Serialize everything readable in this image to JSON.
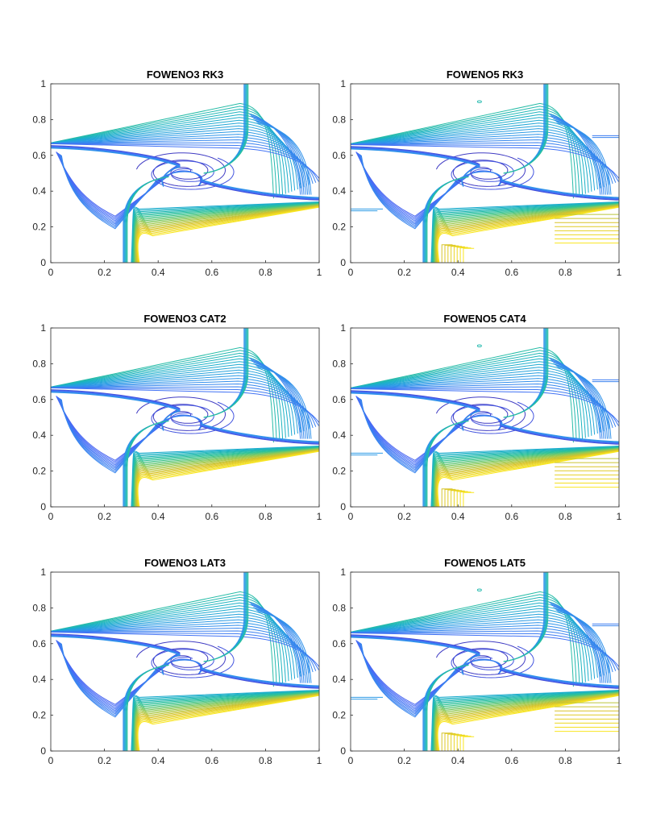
{
  "figure": {
    "description_type": "contour-grid",
    "colormap": [
      "#3e26a8",
      "#4669f7",
      "#2d97e9",
      "#1ab1c7",
      "#2ec295",
      "#8ec957",
      "#d9c328",
      "#f9e61f"
    ]
  },
  "chart_data": [
    {
      "type": "contour",
      "title": "FOWENO3 RK3",
      "xlim": [
        0,
        1
      ],
      "ylim": [
        0,
        1
      ],
      "xticks": [
        0,
        0.2,
        0.4,
        0.6,
        0.8,
        1
      ],
      "yticks": [
        0,
        0.2,
        0.4,
        0.6,
        0.8,
        1
      ],
      "xtick_labels": [
        "0",
        "0.2",
        "0.4",
        "0.6",
        "0.8",
        "1"
      ],
      "ytick_labels": [
        "0",
        "0.2",
        "0.4",
        "0.6",
        "0.8",
        "1"
      ],
      "scheme": "weno3",
      "vortex_center": [
        0.5,
        0.5
      ],
      "shear_left_y": 0.655,
      "shear_right_y": 0.35,
      "shear_top_x": 0.72,
      "shear_bottom_x": 0.27
    },
    {
      "type": "contour",
      "title": "FOWENO5 RK3",
      "xlim": [
        0,
        1
      ],
      "ylim": [
        0,
        1
      ],
      "xticks": [
        0,
        0.2,
        0.4,
        0.6,
        0.8,
        1
      ],
      "yticks": [
        0,
        0.2,
        0.4,
        0.6,
        0.8,
        1
      ],
      "xtick_labels": [
        "0",
        "0.2",
        "0.4",
        "0.6",
        "0.8",
        "1"
      ],
      "ytick_labels": [
        "0",
        "0.2",
        "0.4",
        "0.6",
        "0.8",
        "1"
      ],
      "scheme": "weno5",
      "vortex_center": [
        0.5,
        0.5
      ],
      "shear_left_y": 0.65,
      "shear_right_y": 0.35,
      "shear_top_x": 0.72,
      "shear_bottom_x": 0.27
    },
    {
      "type": "contour",
      "title": "FOWENO3 CAT2",
      "xlim": [
        0,
        1
      ],
      "ylim": [
        0,
        1
      ],
      "xticks": [
        0,
        0.2,
        0.4,
        0.6,
        0.8,
        1
      ],
      "yticks": [
        0,
        0.2,
        0.4,
        0.6,
        0.8,
        1
      ],
      "xtick_labels": [
        "0",
        "0.2",
        "0.4",
        "0.6",
        "0.8",
        "1"
      ],
      "ytick_labels": [
        "0",
        "0.2",
        "0.4",
        "0.6",
        "0.8",
        "1"
      ],
      "scheme": "weno3",
      "vortex_center": [
        0.5,
        0.5
      ],
      "shear_left_y": 0.655,
      "shear_right_y": 0.35,
      "shear_top_x": 0.72,
      "shear_bottom_x": 0.27
    },
    {
      "type": "contour",
      "title": "FOWENO5 CAT4",
      "xlim": [
        0,
        1
      ],
      "ylim": [
        0,
        1
      ],
      "xticks": [
        0,
        0.2,
        0.4,
        0.6,
        0.8,
        1
      ],
      "yticks": [
        0,
        0.2,
        0.4,
        0.6,
        0.8,
        1
      ],
      "xtick_labels": [
        "0",
        "0.2",
        "0.4",
        "0.6",
        "0.8",
        "1"
      ],
      "ytick_labels": [
        "0",
        "0.2",
        "0.4",
        "0.6",
        "0.8",
        "1"
      ],
      "scheme": "weno5",
      "vortex_center": [
        0.5,
        0.5
      ],
      "shear_left_y": 0.65,
      "shear_right_y": 0.35,
      "shear_top_x": 0.72,
      "shear_bottom_x": 0.27
    },
    {
      "type": "contour",
      "title": "FOWENO3 LAT3",
      "xlim": [
        0,
        1
      ],
      "ylim": [
        0,
        1
      ],
      "xticks": [
        0,
        0.2,
        0.4,
        0.6,
        0.8,
        1
      ],
      "yticks": [
        0,
        0.2,
        0.4,
        0.6,
        0.8,
        1
      ],
      "xtick_labels": [
        "0",
        "0.2",
        "0.4",
        "0.6",
        "0.8",
        "1"
      ],
      "ytick_labels": [
        "0",
        "0.2",
        "0.4",
        "0.6",
        "0.8",
        "1"
      ],
      "scheme": "weno3",
      "vortex_center": [
        0.5,
        0.5
      ],
      "shear_left_y": 0.655,
      "shear_right_y": 0.35,
      "shear_top_x": 0.72,
      "shear_bottom_x": 0.27
    },
    {
      "type": "contour",
      "title": "FOWENO5 LAT5",
      "xlim": [
        0,
        1
      ],
      "ylim": [
        0,
        1
      ],
      "xticks": [
        0,
        0.2,
        0.4,
        0.6,
        0.8,
        1
      ],
      "yticks": [
        0,
        0.2,
        0.4,
        0.6,
        0.8,
        1
      ],
      "xtick_labels": [
        "0",
        "0.2",
        "0.4",
        "0.6",
        "0.8",
        "1"
      ],
      "ytick_labels": [
        "0",
        "0.2",
        "0.4",
        "0.6",
        "0.8",
        "1"
      ],
      "scheme": "weno5",
      "vortex_center": [
        0.5,
        0.5
      ],
      "shear_left_y": 0.65,
      "shear_right_y": 0.35,
      "shear_top_x": 0.72,
      "shear_bottom_x": 0.27
    }
  ]
}
